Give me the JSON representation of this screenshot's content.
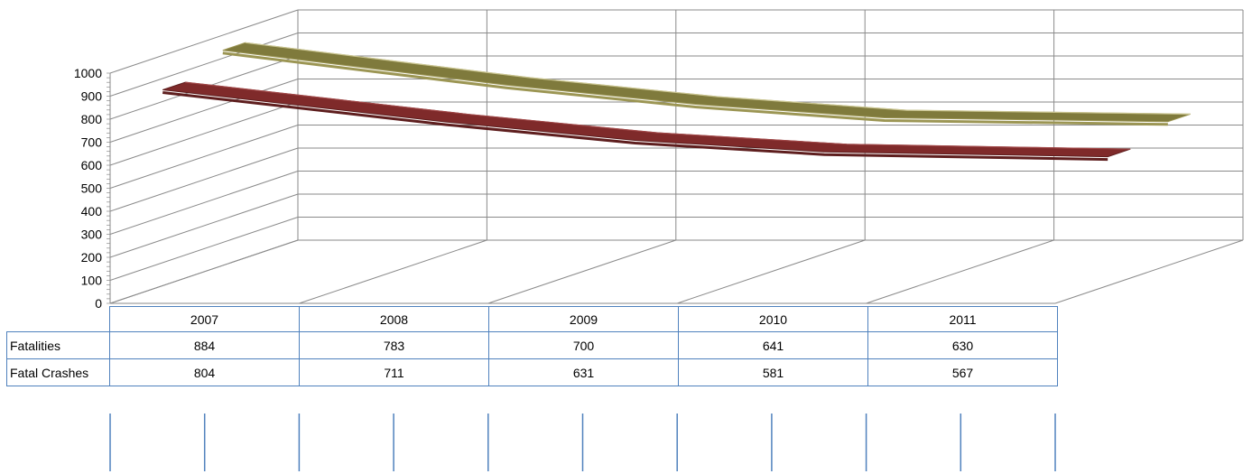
{
  "chart_data": {
    "type": "line",
    "style": "3d-ribbon",
    "categories": [
      "2007",
      "2008",
      "2009",
      "2010",
      "2011"
    ],
    "series": [
      {
        "name": "Fatalities",
        "values": [
          884,
          783,
          700,
          641,
          630
        ],
        "color": "#7f7a3c"
      },
      {
        "name": "Fatal Crashes",
        "values": [
          804,
          711,
          631,
          581,
          567
        ],
        "color": "#7f2a2a"
      }
    ],
    "y_ticks": [
      "0",
      "100",
      "200",
      "300",
      "400",
      "500",
      "600",
      "700",
      "800",
      "900",
      "1000"
    ],
    "ylim": [
      0,
      1000
    ],
    "grid": true,
    "legend": "data-table"
  },
  "table": {
    "rows": [
      {
        "label": "Fatalities",
        "values": [
          "884",
          "783",
          "700",
          "641",
          "630"
        ]
      },
      {
        "label": "Fatal Crashes",
        "values": [
          "804",
          "711",
          "631",
          "581",
          "567"
        ]
      }
    ]
  },
  "colors": {
    "grid": "#8a8a8a",
    "table_border": "#4f81bd"
  }
}
